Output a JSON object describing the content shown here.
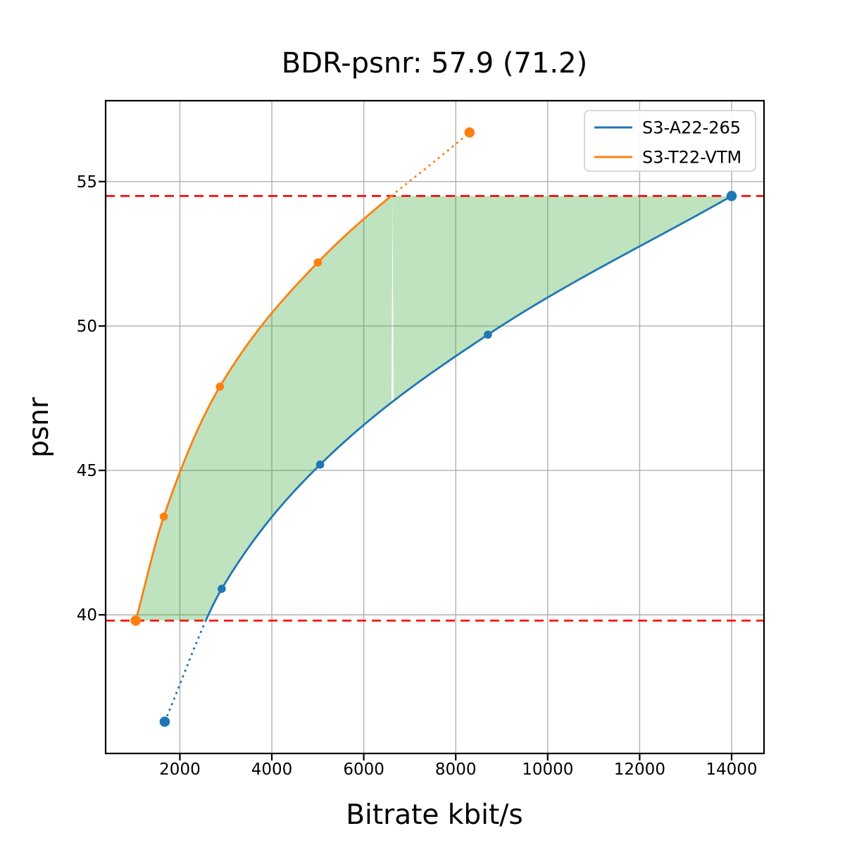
{
  "chart_data": {
    "type": "line",
    "title": "BDR-psnr: 57.9 (71.2)",
    "xlabel": "Bitrate kbit/s",
    "ylabel": "psnr",
    "xlim": [
      385,
      14705
    ],
    "ylim": [
      35.2,
      57.8
    ],
    "xticks": [
      2000,
      4000,
      6000,
      8000,
      10000,
      12000,
      14000
    ],
    "yticks": [
      40,
      45,
      50,
      55
    ],
    "grid": true,
    "grid_color": "#b0b0b0",
    "legend": {
      "position": "upper-right",
      "entries": [
        "S3-A22-265",
        "S3-T22-VTM"
      ]
    },
    "series": [
      {
        "name": "S3-A22-265",
        "color": "#1f77b4",
        "x": [
          1670,
          2910,
          5050,
          8700,
          14000
        ],
        "y": [
          36.3,
          40.9,
          45.2,
          49.7,
          54.5
        ]
      },
      {
        "name": "S3-T22-VTM",
        "color": "#ff7f0e",
        "x": [
          1040,
          1650,
          2870,
          5000,
          8300
        ],
        "y": [
          39.8,
          43.4,
          47.9,
          52.2,
          56.7
        ]
      }
    ],
    "hlines": [
      {
        "y": 54.5,
        "color": "#ff0000",
        "style": "dashed"
      },
      {
        "y": 39.8,
        "color": "#ff0000",
        "style": "dashed"
      }
    ],
    "fill_between": {
      "color": "#2ca02c",
      "opacity": 0.3,
      "psnr_range": [
        39.8,
        54.5
      ]
    }
  }
}
